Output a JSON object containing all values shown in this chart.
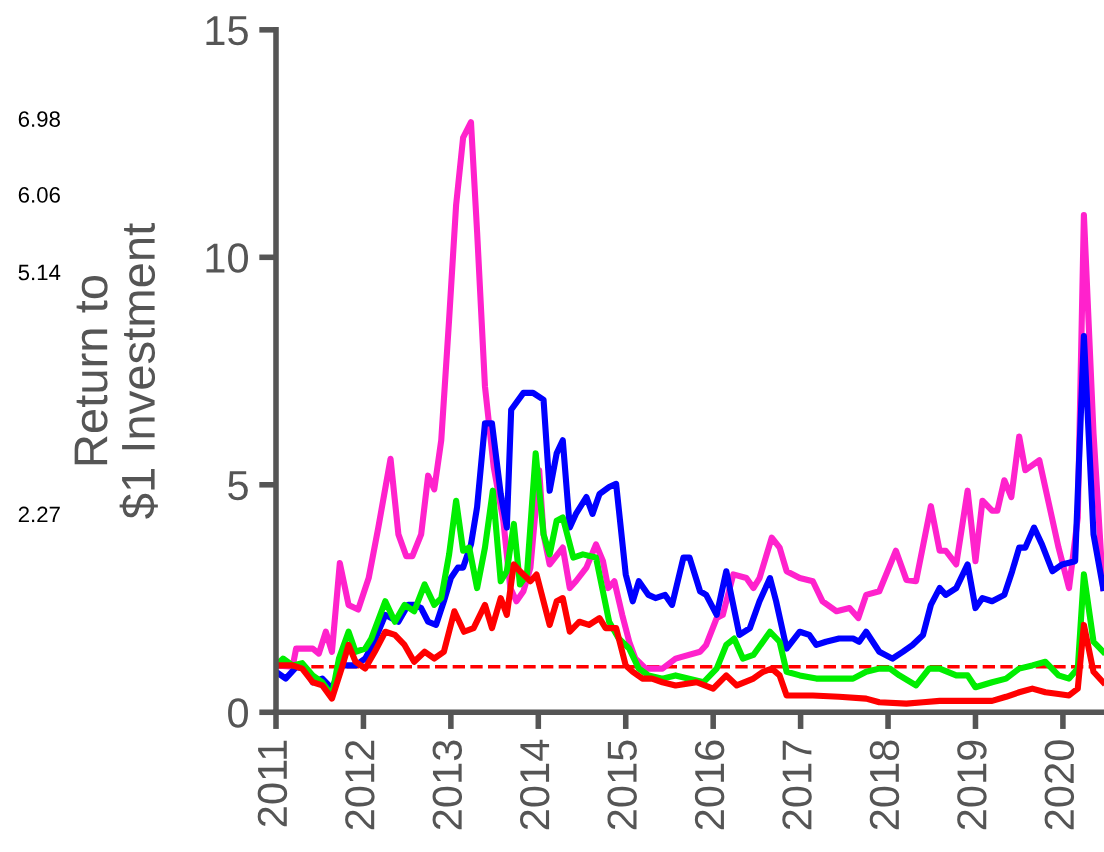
{
  "chart_data": {
    "type": "line",
    "ylabel": "Return to\n$1 Investment",
    "annotations": [
      "6.98",
      "6.06",
      "5.14",
      "2.27"
    ],
    "xlim": [
      2011,
      2020.47
    ],
    "xticks": [
      2011,
      2012,
      2013,
      2014,
      2015,
      2016,
      2017,
      2018,
      2019,
      2020
    ],
    "ylim": [
      0,
      15
    ],
    "yticks": [
      0,
      5,
      10,
      15
    ],
    "grid": false,
    "legend": false,
    "line_style": "solid",
    "ref_lines": [
      {
        "axis": "y",
        "value": 1,
        "label": null,
        "color": "#ff0000",
        "line_style": "dashed"
      }
    ],
    "series": [
      {
        "color": "#ff22cc",
        "x": [
          2011.0,
          2011.19,
          2011.23,
          2011.42,
          2011.49,
          2011.57,
          2011.64,
          2011.73,
          2011.83,
          2011.94,
          2012.06,
          2012.17,
          2012.31,
          2012.4,
          2012.49,
          2012.56,
          2012.66,
          2012.74,
          2012.81,
          2012.89,
          2012.98,
          2013.06,
          2013.14,
          2013.23,
          2013.3,
          2013.39,
          2013.49,
          2013.6,
          2013.68,
          2013.75,
          2013.83,
          2013.91,
          2014.01,
          2014.06,
          2014.13,
          2014.28,
          2014.36,
          2014.43,
          2014.55,
          2014.66,
          2014.74,
          2014.8,
          2014.87,
          2014.96,
          2015.04,
          2015.11,
          2015.23,
          2015.42,
          2015.57,
          2015.85,
          2015.92,
          2016.04,
          2016.11,
          2016.23,
          2016.38,
          2016.46,
          2016.53,
          2016.67,
          2016.76,
          2016.84,
          2016.99,
          2017.14,
          2017.25,
          2017.41,
          2017.56,
          2017.66,
          2017.75,
          2017.9,
          2018.09,
          2018.21,
          2018.32,
          2018.49,
          2018.59,
          2018.66,
          2018.78,
          2018.91,
          2019.0,
          2019.08,
          2019.19,
          2019.25,
          2019.33,
          2019.41,
          2019.5,
          2019.57,
          2019.73,
          2019.84,
          2019.95,
          2020.07,
          2020.17,
          2020.24,
          2020.35,
          2020.46
        ],
        "values": [
          1.03,
          1.0,
          1.4,
          1.4,
          1.29,
          1.77,
          1.33,
          3.28,
          2.36,
          2.26,
          2.95,
          4.06,
          5.57,
          3.91,
          3.43,
          3.43,
          3.91,
          5.2,
          4.9,
          5.98,
          8.64,
          11.15,
          12.63,
          12.97,
          10.56,
          7.16,
          5.39,
          4.21,
          2.73,
          2.44,
          2.66,
          3.18,
          5.32,
          3.91,
          3.25,
          3.62,
          2.73,
          2.88,
          3.18,
          3.69,
          3.32,
          2.73,
          2.88,
          2.14,
          1.55,
          1.18,
          0.96,
          0.96,
          1.18,
          1.33,
          1.48,
          2.07,
          2.14,
          3.03,
          2.95,
          2.73,
          2.95,
          3.84,
          3.62,
          3.1,
          2.95,
          2.88,
          2.44,
          2.22,
          2.29,
          2.07,
          2.58,
          2.66,
          3.55,
          2.91,
          2.88,
          4.53,
          3.55,
          3.55,
          3.25,
          4.87,
          3.32,
          4.65,
          4.43,
          4.43,
          5.1,
          4.73,
          6.06,
          5.32,
          5.54,
          4.58,
          3.62,
          2.73,
          4.28,
          10.93,
          6.13,
          2.73
        ]
      },
      {
        "color": "#0000ff",
        "x": [
          2011.0,
          2011.11,
          2011.23,
          2011.34,
          2011.42,
          2011.53,
          2011.64,
          2011.75,
          2011.91,
          2012.02,
          2012.13,
          2012.25,
          2012.4,
          2012.51,
          2012.58,
          2012.66,
          2012.74,
          2012.83,
          2012.92,
          2013.0,
          2013.08,
          2013.14,
          2013.23,
          2013.3,
          2013.39,
          2013.47,
          2013.57,
          2013.64,
          2013.69,
          2013.83,
          2013.94,
          2014.06,
          2014.13,
          2014.21,
          2014.28,
          2014.36,
          2014.43,
          2014.55,
          2014.62,
          2014.7,
          2014.81,
          2014.89,
          2015.0,
          2015.08,
          2015.15,
          2015.26,
          2015.34,
          2015.45,
          2015.53,
          2015.66,
          2015.73,
          2015.85,
          2015.92,
          2016.04,
          2016.15,
          2016.3,
          2016.42,
          2016.53,
          2016.65,
          2016.72,
          2016.84,
          2016.99,
          2017.1,
          2017.18,
          2017.29,
          2017.44,
          2017.6,
          2017.67,
          2017.75,
          2017.9,
          2018.05,
          2018.17,
          2018.28,
          2018.4,
          2018.49,
          2018.59,
          2018.66,
          2018.78,
          2018.91,
          2019.0,
          2019.08,
          2019.19,
          2019.33,
          2019.42,
          2019.5,
          2019.57,
          2019.67,
          2019.76,
          2019.88,
          2019.99,
          2020.14,
          2020.24,
          2020.35,
          2020.46
        ],
        "values": [
          0.89,
          0.74,
          0.99,
          0.96,
          0.66,
          0.74,
          0.52,
          1.03,
          1.03,
          1.18,
          1.58,
          2.14,
          1.99,
          2.36,
          2.36,
          2.29,
          1.99,
          1.92,
          2.44,
          2.95,
          3.18,
          3.18,
          3.69,
          4.51,
          6.35,
          6.35,
          4.8,
          4.06,
          6.65,
          7.02,
          7.02,
          6.87,
          4.87,
          5.69,
          5.98,
          4.06,
          4.36,
          4.73,
          4.36,
          4.8,
          4.95,
          5.02,
          3.03,
          2.44,
          2.88,
          2.58,
          2.51,
          2.58,
          2.36,
          3.4,
          3.4,
          2.66,
          2.58,
          2.14,
          3.1,
          1.7,
          1.85,
          2.44,
          2.95,
          2.44,
          1.4,
          1.77,
          1.7,
          1.48,
          1.55,
          1.62,
          1.62,
          1.55,
          1.77,
          1.33,
          1.18,
          1.33,
          1.48,
          1.7,
          2.36,
          2.73,
          2.58,
          2.73,
          3.25,
          2.29,
          2.51,
          2.44,
          2.58,
          3.1,
          3.62,
          3.62,
          4.06,
          3.69,
          3.1,
          3.25,
          3.32,
          8.27,
          3.91,
          2.73
        ]
      },
      {
        "color": "#00ee00",
        "x": [
          2011.0,
          2011.08,
          2011.19,
          2011.3,
          2011.42,
          2011.53,
          2011.64,
          2011.72,
          2011.83,
          2011.91,
          2012.02,
          2012.09,
          2012.25,
          2012.36,
          2012.47,
          2012.58,
          2012.7,
          2012.81,
          2012.89,
          2012.98,
          2013.06,
          2013.14,
          2013.21,
          2013.3,
          2013.39,
          2013.48,
          2013.57,
          2013.64,
          2013.72,
          2013.79,
          2013.87,
          2013.97,
          2014.06,
          2014.13,
          2014.21,
          2014.28,
          2014.4,
          2014.51,
          2014.66,
          2014.81,
          2014.92,
          2015.04,
          2015.15,
          2015.26,
          2015.42,
          2015.57,
          2015.89,
          2016.04,
          2016.15,
          2016.24,
          2016.34,
          2016.46,
          2016.65,
          2016.76,
          2016.84,
          2016.99,
          2017.18,
          2017.37,
          2017.6,
          2017.75,
          2017.9,
          2018.02,
          2018.13,
          2018.32,
          2018.47,
          2018.59,
          2018.78,
          2018.91,
          2019.0,
          2019.19,
          2019.35,
          2019.5,
          2019.65,
          2019.8,
          2019.95,
          2020.07,
          2020.17,
          2020.24,
          2020.35,
          2020.46
        ],
        "values": [
          1.03,
          1.18,
          1.03,
          1.08,
          0.81,
          0.66,
          0.37,
          1.18,
          1.77,
          1.33,
          1.4,
          1.62,
          2.44,
          1.99,
          2.36,
          2.22,
          2.81,
          2.36,
          2.51,
          3.47,
          4.65,
          3.55,
          3.62,
          2.73,
          3.62,
          4.87,
          2.88,
          3.1,
          4.14,
          2.81,
          3.03,
          5.69,
          3.91,
          3.47,
          4.21,
          4.28,
          3.4,
          3.47,
          3.4,
          1.99,
          1.62,
          1.4,
          0.96,
          0.81,
          0.74,
          0.81,
          0.66,
          0.96,
          1.48,
          1.62,
          1.18,
          1.26,
          1.77,
          1.55,
          0.89,
          0.81,
          0.74,
          0.74,
          0.74,
          0.89,
          0.96,
          0.96,
          0.81,
          0.59,
          0.96,
          0.96,
          0.81,
          0.81,
          0.55,
          0.66,
          0.74,
          0.96,
          1.03,
          1.11,
          0.81,
          0.74,
          0.96,
          3.03,
          1.55,
          1.33
        ]
      },
      {
        "color": "#ff0000",
        "x": [
          2011.0,
          2011.19,
          2011.3,
          2011.42,
          2011.53,
          2011.64,
          2011.75,
          2011.83,
          2011.91,
          2012.02,
          2012.13,
          2012.25,
          2012.36,
          2012.47,
          2012.58,
          2012.7,
          2012.81,
          2012.92,
          2013.04,
          2013.15,
          2013.26,
          2013.39,
          2013.47,
          2013.57,
          2013.64,
          2013.72,
          2013.79,
          2013.91,
          2013.98,
          2014.13,
          2014.21,
          2014.28,
          2014.36,
          2014.47,
          2014.58,
          2014.7,
          2014.77,
          2014.89,
          2015.0,
          2015.08,
          2015.19,
          2015.3,
          2015.42,
          2015.57,
          2015.81,
          2016.0,
          2016.15,
          2016.27,
          2016.46,
          2016.57,
          2016.67,
          2016.76,
          2016.84,
          2017.14,
          2017.44,
          2017.75,
          2017.9,
          2018.21,
          2018.4,
          2018.59,
          2018.81,
          2019.19,
          2019.35,
          2019.5,
          2019.65,
          2019.8,
          2019.95,
          2020.07,
          2020.17,
          2020.24,
          2020.35,
          2020.46
        ],
        "values": [
          1.03,
          1.03,
          0.96,
          0.66,
          0.59,
          0.3,
          0.96,
          1.48,
          1.11,
          0.96,
          1.33,
          1.77,
          1.7,
          1.48,
          1.11,
          1.33,
          1.18,
          1.33,
          2.22,
          1.77,
          1.85,
          2.36,
          1.85,
          2.51,
          2.14,
          3.25,
          3.1,
          2.88,
          3.03,
          1.92,
          2.44,
          2.51,
          1.77,
          1.99,
          1.92,
          2.07,
          1.85,
          1.85,
          1.03,
          0.89,
          0.74,
          0.74,
          0.66,
          0.59,
          0.66,
          0.52,
          0.81,
          0.59,
          0.74,
          0.89,
          0.96,
          0.81,
          0.37,
          0.37,
          0.34,
          0.3,
          0.22,
          0.19,
          0.22,
          0.25,
          0.25,
          0.25,
          0.34,
          0.44,
          0.52,
          0.44,
          0.4,
          0.37,
          0.52,
          1.92,
          0.89,
          0.66
        ]
      }
    ]
  }
}
